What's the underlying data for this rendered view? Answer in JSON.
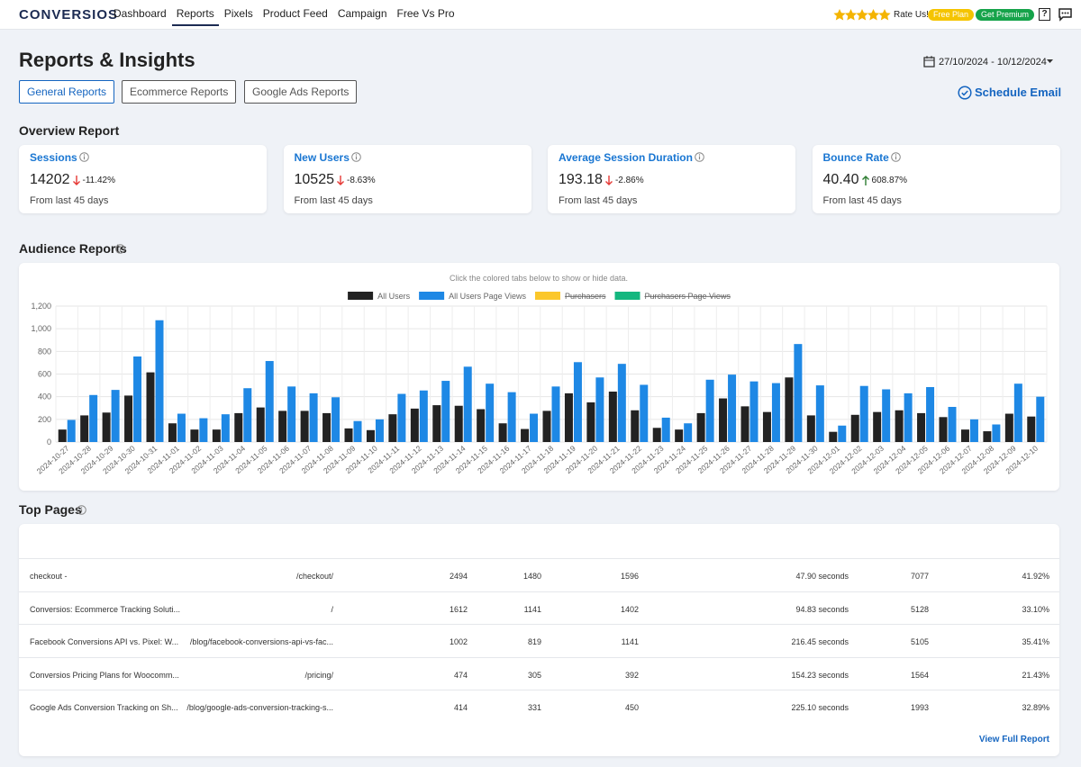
{
  "nav": {
    "brand": "CONVERSIOS",
    "links": [
      "Dashboard",
      "Reports",
      "Pixels",
      "Product Feed",
      "Campaign",
      "Free Vs Pro"
    ],
    "rate": "Rate Us!",
    "plan": "Free Plan",
    "premium": "Get Premium",
    "help": "?"
  },
  "header": {
    "title": "Reports & Insights",
    "date_range": "27/10/2024 - 10/12/2024",
    "tabs": [
      "General Reports",
      "Ecommerce Reports",
      "Google Ads Reports"
    ],
    "schedule": "Schedule Email"
  },
  "overview": {
    "title": "Overview Report",
    "cards": [
      {
        "label": "Sessions",
        "value": "14202",
        "change": "-11.42%",
        "note": "From last 45 days"
      },
      {
        "label": "New Users",
        "value": "10525",
        "change": "-8.63%",
        "note": "From last 45 days"
      },
      {
        "label": "Average Session Duration",
        "value": "193.18",
        "change": "-2.86%",
        "note": "From last 45 days"
      },
      {
        "label": "Bounce Rate",
        "value": "40.40",
        "change": "608.87%",
        "note": "From last 45 days"
      }
    ]
  },
  "audience": {
    "title": "Audience Reports"
  },
  "chart_data": {
    "type": "bar",
    "hint": "Click the colored tabs below to show or hide data.",
    "categories": [
      "2024-10-27",
      "2024-10-28",
      "2024-10-29",
      "2024-10-30",
      "2024-10-31",
      "2024-11-01",
      "2024-11-02",
      "2024-11-03",
      "2024-11-04",
      "2024-11-05",
      "2024-11-06",
      "2024-11-07",
      "2024-11-08",
      "2024-11-09",
      "2024-11-10",
      "2024-11-11",
      "2024-11-12",
      "2024-11-13",
      "2024-11-14",
      "2024-11-15",
      "2024-11-16",
      "2024-11-17",
      "2024-11-18",
      "2024-11-19",
      "2024-11-20",
      "2024-11-21",
      "2024-11-22",
      "2024-11-23",
      "2024-11-24",
      "2024-11-25",
      "2024-11-26",
      "2024-11-27",
      "2024-11-28",
      "2024-11-29",
      "2024-11-30",
      "2024-12-01",
      "2024-12-02",
      "2024-12-03",
      "2024-12-04",
      "2024-12-05",
      "2024-12-06",
      "2024-12-07",
      "2024-12-08",
      "2024-12-09",
      "2024-12-10"
    ],
    "series": [
      {
        "name": "All Users",
        "color": "#222222",
        "values": [
          110,
          235,
          260,
          410,
          615,
          165,
          110,
          110,
          255,
          305,
          275,
          275,
          255,
          120,
          105,
          245,
          295,
          325,
          320,
          290,
          165,
          115,
          275,
          430,
          350,
          445,
          280,
          125,
          110,
          255,
          385,
          315,
          265,
          570,
          235,
          90,
          240,
          265,
          280,
          255,
          220,
          110,
          95,
          250,
          225
        ]
      },
      {
        "name": "All Users Page Views",
        "color": "#1e88e5",
        "values": [
          195,
          415,
          460,
          755,
          1075,
          250,
          210,
          245,
          475,
          715,
          490,
          430,
          395,
          185,
          200,
          425,
          455,
          540,
          665,
          515,
          440,
          250,
          490,
          705,
          570,
          690,
          505,
          215,
          165,
          550,
          595,
          535,
          520,
          865,
          500,
          145,
          495,
          465,
          430,
          485,
          310,
          200,
          155,
          515,
          400
        ]
      },
      {
        "name": "Purchasers",
        "color": "#fbc72b",
        "hidden": true
      },
      {
        "name": "Purchasers Page Views",
        "color": "#14b77f",
        "hidden": true
      }
    ],
    "ylim": [
      0,
      1200
    ],
    "yticks": [
      0,
      200,
      400,
      600,
      800,
      {
        "value": 1000,
        "label": "1,000"
      },
      {
        "value": 1200,
        "label": "1,200"
      }
    ],
    "grid": true,
    "legend": "top"
  },
  "top_pages": {
    "title": "Top Pages",
    "rows": [
      [
        "checkout -",
        "/checkout/",
        "2494",
        "1480",
        "1596",
        "47.90 seconds",
        "7077",
        "41.92%"
      ],
      [
        "Conversios: Ecommerce Tracking Soluti...",
        "/",
        "1612",
        "1141",
        "1402",
        "94.83 seconds",
        "5128",
        "33.10%"
      ],
      [
        "Facebook Conversions API vs. Pixel: W...",
        "/blog/facebook-conversions-api-vs-fac...",
        "1002",
        "819",
        "1141",
        "216.45 seconds",
        "5105",
        "35.41%"
      ],
      [
        "Conversios Pricing Plans for Woocomm...",
        "/pricing/",
        "474",
        "305",
        "392",
        "154.23 seconds",
        "1564",
        "21.43%"
      ],
      [
        "Google Ads Conversion Tracking on Sh...",
        "/blog/google-ads-conversion-tracking-s...",
        "414",
        "331",
        "450",
        "225.10 seconds",
        "1993",
        "32.89%"
      ]
    ],
    "link": "View Full Report"
  }
}
